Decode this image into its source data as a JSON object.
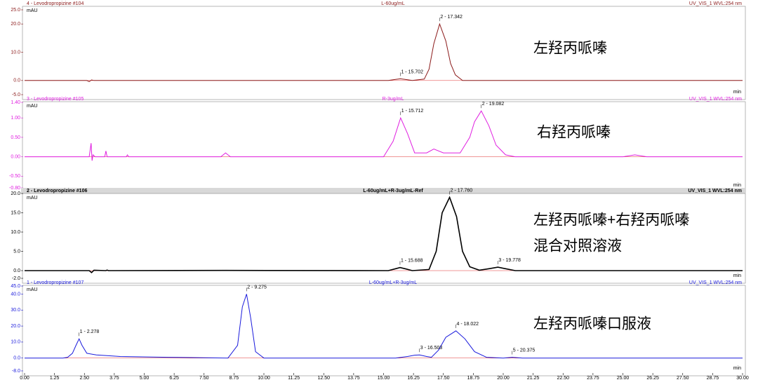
{
  "chart_data": [
    {
      "type": "line",
      "title": "4 - Levodropropizine #104",
      "subtitle": "L-60ug/mL",
      "detector": "UV_VIS_1 WVL:254 nm",
      "ylabel": "mAU",
      "xlabel": "min",
      "color": "#8b1a1a",
      "xlim": [
        0,
        30
      ],
      "ylim": [
        -5,
        25
      ],
      "yticks": [
        {
          "value": 25,
          "label": "25.0"
        },
        {
          "value": 20,
          "label": "20.0"
        },
        {
          "value": 10,
          "label": "10.0"
        },
        {
          "value": 0,
          "label": "0.0"
        },
        {
          "value": -5,
          "label": "-5.0"
        }
      ],
      "x": [
        0,
        2.6,
        2.7,
        2.8,
        2.9,
        15.2,
        15.5,
        15.7,
        15.9,
        16.2,
        16.7,
        16.9,
        17.1,
        17.342,
        17.6,
        17.8,
        18.0,
        18.3,
        30
      ],
      "values": [
        0,
        0,
        -0.4,
        0.2,
        0,
        0,
        0.4,
        0.6,
        0.4,
        0,
        0.5,
        4,
        13,
        20,
        14,
        6,
        2,
        0,
        0
      ],
      "peaks": [
        {
          "label": "1 - 15.702",
          "x": 15.702
        },
        {
          "label": "2 - 17.342",
          "x": 17.342
        }
      ],
      "annotations": [
        "左羟丙哌嗪"
      ]
    },
    {
      "type": "line",
      "title": "3 - Levodropropizine #105",
      "subtitle": "R-3ug/mL",
      "detector": "UV_VIS_1 WVL:254 nm",
      "ylabel": "mAU",
      "xlabel": "min",
      "color": "#e020e0",
      "xlim": [
        0,
        30
      ],
      "ylim": [
        -0.8,
        1.4
      ],
      "yticks": [
        {
          "value": 1.4,
          "label": "1.40"
        },
        {
          "value": 1,
          "label": "1.00"
        },
        {
          "value": 0.5,
          "label": "0.50"
        },
        {
          "value": 0,
          "label": "0.00"
        },
        {
          "value": -0.5,
          "label": "-0.50"
        },
        {
          "value": -0.8,
          "label": "-0.80"
        }
      ],
      "x": [
        0,
        2.7,
        2.78,
        2.82,
        2.86,
        2.95,
        3.35,
        3.4,
        3.45,
        4.25,
        4.3,
        4.35,
        8.2,
        8.4,
        8.6,
        15.0,
        15.4,
        15.712,
        16.0,
        16.3,
        16.8,
        17.1,
        17.5,
        18.2,
        18.6,
        18.8,
        19.082,
        19.4,
        19.7,
        20.1,
        20.5,
        25.0,
        25.5,
        26.0,
        30
      ],
      "values": [
        0,
        0,
        0.35,
        -0.1,
        0.05,
        0,
        0,
        0.15,
        0,
        0,
        0.05,
        0,
        0,
        0.1,
        0,
        0,
        0.4,
        1.0,
        0.6,
        0.1,
        0.1,
        0.2,
        0.1,
        0.1,
        0.5,
        0.9,
        1.18,
        0.8,
        0.3,
        0.05,
        0,
        0,
        0.05,
        0,
        0
      ],
      "peaks": [
        {
          "label": "1 - 15.712",
          "x": 15.712
        },
        {
          "label": "2 - 19.082",
          "x": 19.082
        }
      ],
      "annotations": [
        "右羟丙哌嗪"
      ]
    },
    {
      "type": "line",
      "title": "2 - Levodropropizine #106",
      "subtitle": "L-60ug/mL+R-3ug/mL-Ref",
      "detector": "UV_VIS_1 WVL:254 nm",
      "ylabel": "mAU",
      "xlabel": "min",
      "color": "#000000",
      "xlim": [
        0,
        30
      ],
      "ylim": [
        -2,
        20
      ],
      "yticks": [
        {
          "value": 20,
          "label": "20.0"
        },
        {
          "value": 15,
          "label": "15.0"
        },
        {
          "value": 10,
          "label": "10.0"
        },
        {
          "value": 5,
          "label": "5.0"
        },
        {
          "value": 0,
          "label": "0.0"
        },
        {
          "value": -2,
          "label": "-2.0"
        }
      ],
      "x": [
        0,
        2.7,
        2.8,
        2.9,
        3.4,
        3.45,
        3.5,
        8.4,
        15.2,
        15.5,
        15.688,
        15.9,
        16.2,
        16.9,
        17.2,
        17.45,
        17.76,
        18.05,
        18.3,
        18.6,
        19.0,
        19.4,
        19.778,
        20.1,
        20.5,
        30
      ],
      "values": [
        0,
        0,
        -0.5,
        0.1,
        0,
        0.15,
        0,
        0.05,
        0,
        0.5,
        0.8,
        0.5,
        0,
        0.3,
        5,
        15,
        19,
        14,
        5,
        1,
        0.1,
        0.5,
        0.9,
        0.5,
        0,
        0
      ],
      "peaks": [
        {
          "label": "1 - 15.688",
          "x": 15.688
        },
        {
          "label": "2 - 17.760",
          "x": 17.76
        },
        {
          "label": "3 - 19.778",
          "x": 19.778
        }
      ],
      "annotations": [
        "左羟丙哌嗪+右羟丙哌嗪",
        "混合对照溶液"
      ]
    },
    {
      "type": "line",
      "title": "1 - Levodropropizine #107",
      "subtitle": "L-60ug/mL+R-3ug/mL",
      "detector": "UV_VIS_1 WVL:254 nm",
      "ylabel": "mAU",
      "xlabel": "min",
      "color": "#1a1adc",
      "xlim": [
        0,
        30
      ],
      "ylim": [
        -8,
        45
      ],
      "yticks": [
        {
          "value": 45,
          "label": "45.0"
        },
        {
          "value": 40,
          "label": "40.0"
        },
        {
          "value": 30,
          "label": "30.0"
        },
        {
          "value": 20,
          "label": "20.0"
        },
        {
          "value": 10,
          "label": "10.0"
        },
        {
          "value": 0,
          "label": "0.0"
        },
        {
          "value": -8,
          "label": "-8.0"
        }
      ],
      "xticks": [
        {
          "value": 0,
          "label": "0.00"
        },
        {
          "value": 1.25,
          "label": "1.25"
        },
        {
          "value": 2.5,
          "label": "2.50"
        },
        {
          "value": 3.75,
          "label": "3.75"
        },
        {
          "value": 5,
          "label": "5.00"
        },
        {
          "value": 6.25,
          "label": "6.25"
        },
        {
          "value": 7.5,
          "label": "7.50"
        },
        {
          "value": 8.75,
          "label": "8.75"
        },
        {
          "value": 10,
          "label": "10.00"
        },
        {
          "value": 11.25,
          "label": "11.25"
        },
        {
          "value": 12.5,
          "label": "12.50"
        },
        {
          "value": 13.75,
          "label": "13.75"
        },
        {
          "value": 15,
          "label": "15.00"
        },
        {
          "value": 16.25,
          "label": "16.25"
        },
        {
          "value": 17.5,
          "label": "17.50"
        },
        {
          "value": 18.75,
          "label": "18.75"
        },
        {
          "value": 20,
          "label": "20.00"
        },
        {
          "value": 21.25,
          "label": "21.25"
        },
        {
          "value": 22.5,
          "label": "22.50"
        },
        {
          "value": 23.75,
          "label": "23.75"
        },
        {
          "value": 25,
          "label": "25.00"
        },
        {
          "value": 26.25,
          "label": "26.25"
        },
        {
          "value": 27.5,
          "label": "27.50"
        },
        {
          "value": 28.75,
          "label": "28.75"
        },
        {
          "value": 30,
          "label": "30.00"
        }
      ],
      "x": [
        0,
        1.6,
        1.8,
        2.0,
        2.15,
        2.278,
        2.4,
        2.6,
        3.0,
        4.0,
        6.0,
        8.5,
        8.9,
        9.1,
        9.275,
        9.45,
        9.65,
        10.0,
        15.5,
        16.0,
        16.3,
        16.503,
        16.8,
        17.0,
        17.3,
        17.6,
        18.022,
        18.4,
        18.8,
        19.3,
        20.0,
        20.375,
        20.8,
        30
      ],
      "values": [
        0,
        0,
        0.5,
        3,
        8,
        12,
        8,
        3,
        2,
        1,
        0.5,
        0,
        8,
        32,
        40,
        25,
        4,
        0,
        0,
        1,
        1.8,
        2,
        1,
        0.5,
        5,
        13,
        17,
        12,
        4,
        0.5,
        0,
        0.5,
        0,
        0
      ],
      "peaks": [
        {
          "label": "1 - 2.278",
          "x": 2.278
        },
        {
          "label": "2 - 9.275",
          "x": 9.275
        },
        {
          "label": "3 - 16.503",
          "x": 16.503
        },
        {
          "label": "4 - 18.022",
          "x": 18.022
        },
        {
          "label": "5 - 20.375",
          "x": 20.375
        }
      ],
      "annotations": [
        "左羟丙哌嗪口服液"
      ]
    }
  ]
}
